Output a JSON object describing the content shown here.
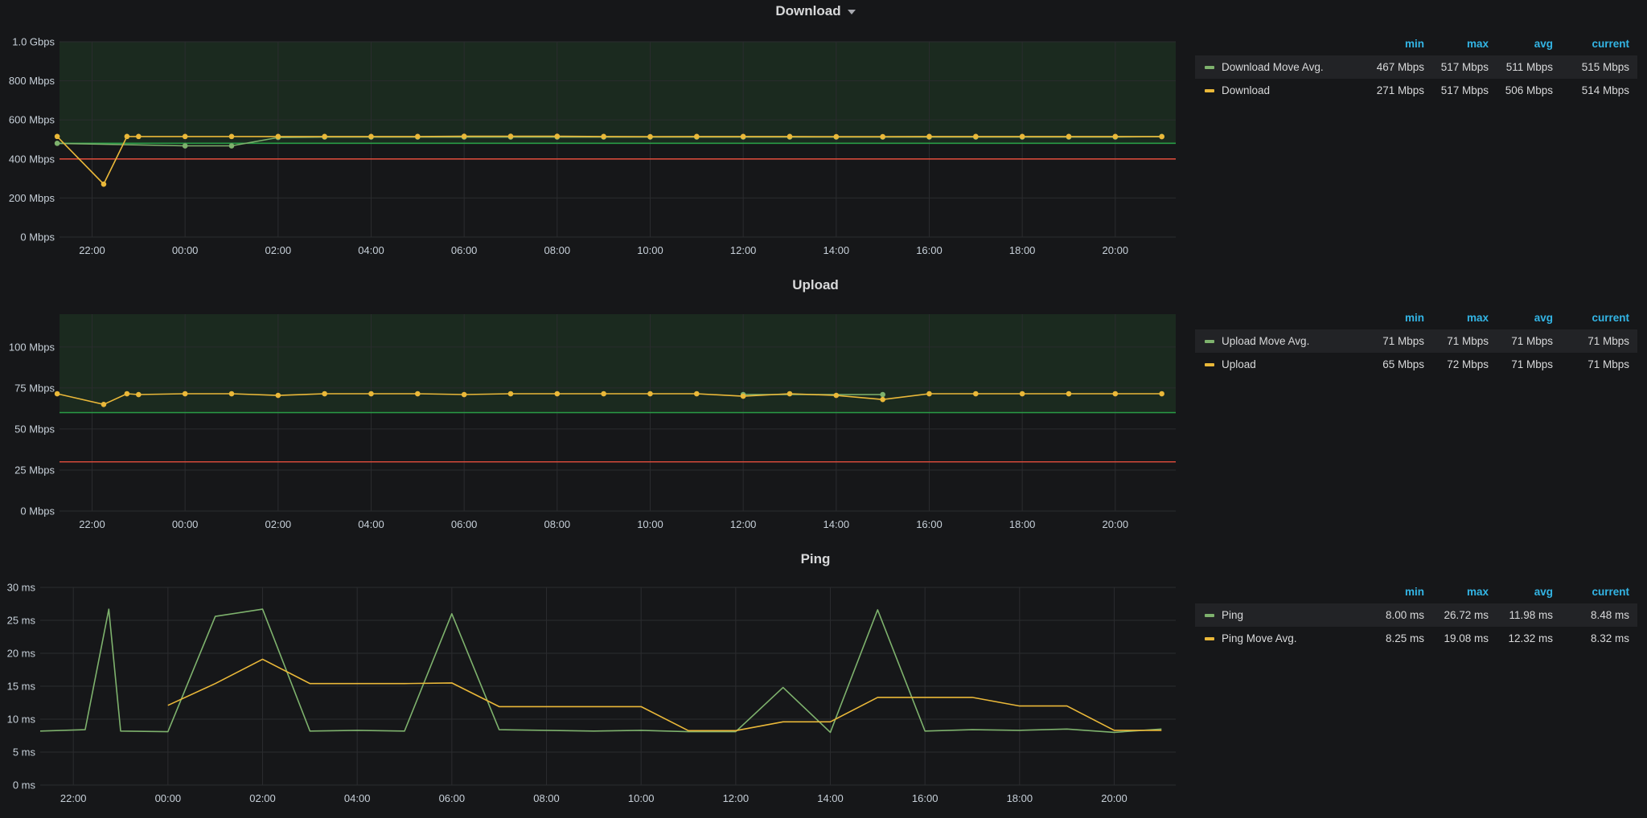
{
  "colors": {
    "green": "#7eb26d",
    "yellow": "#eab839",
    "threshold_ok": "#299c46",
    "threshold_bad": "#d44a3a",
    "ok_region": "#1b2a1f",
    "legend_header": "#33b5e5",
    "background": "#161719",
    "grid": "#2b2c2f"
  },
  "legend_columns": [
    "min",
    "max",
    "avg",
    "current"
  ],
  "x_ticks": [
    "22:00",
    "00:00",
    "02:00",
    "04:00",
    "06:00",
    "08:00",
    "10:00",
    "12:00",
    "14:00",
    "16:00",
    "18:00",
    "20:00"
  ],
  "panels": [
    {
      "title": "Download",
      "legend": [
        {
          "name": "Download Move Avg.",
          "color": "green",
          "min": "467 Mbps",
          "max": "517 Mbps",
          "avg": "511 Mbps",
          "current": "515 Mbps"
        },
        {
          "name": "Download",
          "color": "yellow",
          "min": "271 Mbps",
          "max": "517 Mbps",
          "avg": "506 Mbps",
          "current": "514 Mbps"
        }
      ]
    },
    {
      "title": "Upload",
      "legend": [
        {
          "name": "Upload Move Avg.",
          "color": "green",
          "min": "71 Mbps",
          "max": "71 Mbps",
          "avg": "71 Mbps",
          "current": "71 Mbps"
        },
        {
          "name": "Upload",
          "color": "yellow",
          "min": "65 Mbps",
          "max": "72 Mbps",
          "avg": "71 Mbps",
          "current": "71 Mbps"
        }
      ]
    },
    {
      "title": "Ping",
      "legend": [
        {
          "name": "Ping",
          "color": "green",
          "min": "8.00 ms",
          "max": "26.72 ms",
          "avg": "11.98 ms",
          "current": "8.48 ms"
        },
        {
          "name": "Ping Move Avg.",
          "color": "yellow",
          "min": "8.25 ms",
          "max": "19.08 ms",
          "avg": "12.32 ms",
          "current": "8.32 ms"
        }
      ]
    }
  ],
  "chart_data": [
    {
      "type": "line",
      "title": "Download",
      "unit": "Mbps",
      "x_range_hours": [
        -2.7,
        21.3
      ],
      "ylim": [
        0,
        1000
      ],
      "y_ticks": [
        "0 Mbps",
        "200 Mbps",
        "400 Mbps",
        "600 Mbps",
        "800 Mbps",
        "1.0 Gbps"
      ],
      "y_tick_values": [
        0,
        200,
        400,
        600,
        800,
        1000
      ],
      "thresholds": {
        "ok_above": 480,
        "bad_line": 400
      },
      "points_shown": true,
      "series": [
        {
          "name": "Download Move Avg.",
          "color": "green",
          "x": [
            -2.75,
            0,
            1,
            2,
            3,
            4,
            5,
            6,
            7,
            8,
            9,
            10,
            11,
            12,
            13,
            14,
            15,
            16,
            17,
            18,
            19,
            20,
            21
          ],
          "values": [
            480,
            467,
            467,
            510,
            512,
            512,
            512,
            512,
            512,
            512,
            512,
            512,
            512,
            512,
            512,
            512,
            512,
            512,
            512,
            512,
            512,
            512,
            515
          ]
        },
        {
          "name": "Download",
          "color": "yellow",
          "x": [
            -2.75,
            -1.75,
            -1.25,
            -1,
            0,
            1,
            2,
            3,
            4,
            5,
            6,
            7,
            8,
            9,
            10,
            11,
            12,
            13,
            14,
            15,
            16,
            17,
            18,
            19,
            20,
            21
          ],
          "values": [
            515,
            271,
            515,
            515,
            515,
            515,
            515,
            515,
            515,
            515,
            516,
            516,
            516,
            515,
            514,
            515,
            515,
            515,
            514,
            514,
            515,
            515,
            515,
            515,
            515,
            514
          ]
        }
      ]
    },
    {
      "type": "line",
      "title": "Upload",
      "unit": "Mbps",
      "x_range_hours": [
        -2.7,
        21.3
      ],
      "ylim": [
        0,
        120
      ],
      "y_ticks": [
        "0 Mbps",
        "25 Mbps",
        "50 Mbps",
        "75 Mbps",
        "100 Mbps"
      ],
      "y_tick_values": [
        0,
        25,
        50,
        75,
        100
      ],
      "thresholds": {
        "ok_above": 60,
        "bad_line": 30
      },
      "points_shown": true,
      "series": [
        {
          "name": "Upload Move Avg.",
          "color": "green",
          "x": [
            12,
            15
          ],
          "values": [
            71,
            71
          ]
        },
        {
          "name": "Upload",
          "color": "yellow",
          "x": [
            -2.75,
            -1.75,
            -1.25,
            -1,
            0,
            1,
            2,
            3,
            4,
            5,
            6,
            7,
            8,
            9,
            10,
            11,
            12,
            13,
            14,
            15,
            16,
            17,
            18,
            19,
            20,
            21
          ],
          "values": [
            71.5,
            65,
            71.5,
            71,
            71.5,
            71.5,
            70.5,
            71.5,
            71.5,
            71.5,
            71,
            71.5,
            71.5,
            71.5,
            71.5,
            71.5,
            70,
            71.5,
            70.5,
            68,
            71.5,
            71.5,
            71.5,
            71.5,
            71.5,
            71.5
          ]
        }
      ]
    },
    {
      "type": "line",
      "title": "Ping",
      "unit": "ms",
      "x_range_hours": [
        -2.7,
        21.3
      ],
      "ylim": [
        0,
        30
      ],
      "y_ticks": [
        "0 ms",
        "5 ms",
        "10 ms",
        "15 ms",
        "20 ms",
        "25 ms",
        "30 ms"
      ],
      "y_tick_values": [
        0,
        5,
        10,
        15,
        20,
        25,
        30
      ],
      "points_shown": false,
      "series": [
        {
          "name": "Ping",
          "color": "green",
          "x": [
            -2.7,
            -1.75,
            -1.25,
            -1,
            0,
            1,
            2,
            3,
            4,
            5,
            6,
            7,
            8,
            9,
            10,
            11,
            12,
            13,
            14,
            15,
            16,
            17,
            18,
            19,
            20,
            21
          ],
          "values": [
            8.2,
            8.4,
            26.7,
            8.2,
            8.1,
            25.6,
            26.7,
            8.2,
            8.3,
            8.2,
            26,
            8.4,
            8.3,
            8.2,
            8.3,
            8.1,
            8.1,
            14.8,
            8.0,
            26.6,
            8.2,
            8.4,
            8.3,
            8.5,
            8.0,
            8.5
          ]
        },
        {
          "name": "Ping Move Avg.",
          "color": "yellow",
          "x": [
            0,
            1,
            2,
            3,
            4,
            5,
            6,
            7,
            8,
            9,
            10,
            11,
            12,
            13,
            14,
            15,
            16,
            17,
            18,
            19,
            20,
            21
          ],
          "values": [
            12.1,
            15.4,
            19.1,
            15.4,
            15.4,
            15.4,
            15.5,
            11.9,
            11.9,
            11.9,
            11.9,
            8.25,
            8.25,
            9.6,
            9.6,
            13.3,
            13.3,
            13.3,
            12.0,
            12.0,
            8.3,
            8.3
          ]
        }
      ]
    }
  ]
}
